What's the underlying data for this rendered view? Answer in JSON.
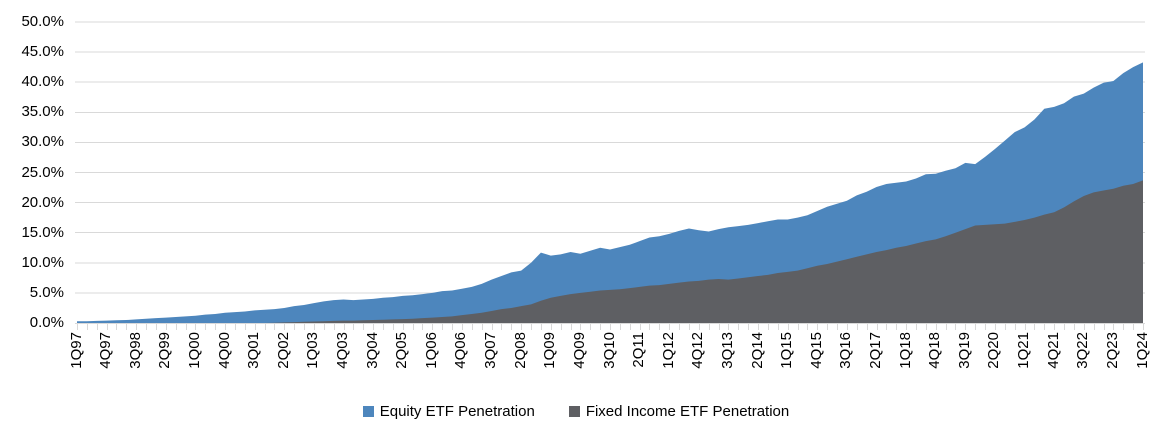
{
  "chart_data": {
    "type": "area",
    "variant": "overlapping-areas-no-stacking",
    "title": "",
    "xlabel": "",
    "ylabel": "",
    "ylim": [
      0,
      50
    ],
    "grid": "horizontal",
    "legend_position": "bottom-center",
    "gridline_color": "#d9d9d9",
    "axis_text_color": "#000000",
    "y_ticks": [
      "0.0%",
      "5.0%",
      "10.0%",
      "15.0%",
      "20.0%",
      "25.0%",
      "30.0%",
      "35.0%",
      "40.0%",
      "45.0%",
      "50.0%"
    ],
    "x_tick_every": 3,
    "x_tick_labels": [
      "1Q97",
      "4Q97",
      "3Q98",
      "2Q99",
      "1Q00",
      "4Q00",
      "3Q01",
      "2Q02",
      "1Q03",
      "4Q03",
      "3Q04",
      "2Q05",
      "1Q06",
      "4Q06",
      "3Q07",
      "2Q08",
      "1Q09",
      "4Q09",
      "3Q10",
      "2Q11",
      "1Q12",
      "4Q12",
      "3Q13",
      "2Q14",
      "1Q15",
      "4Q15",
      "3Q16",
      "2Q17",
      "1Q18",
      "4Q18",
      "3Q19",
      "2Q20",
      "1Q21",
      "4Q21",
      "3Q22",
      "2Q23",
      "1Q24"
    ],
    "x_quarters": [
      "1Q97",
      "2Q97",
      "3Q97",
      "4Q97",
      "1Q98",
      "2Q98",
      "3Q98",
      "4Q98",
      "1Q99",
      "2Q99",
      "3Q99",
      "4Q99",
      "1Q00",
      "2Q00",
      "3Q00",
      "4Q00",
      "1Q01",
      "2Q01",
      "3Q01",
      "4Q01",
      "1Q02",
      "2Q02",
      "3Q02",
      "4Q02",
      "1Q03",
      "2Q03",
      "3Q03",
      "4Q03",
      "1Q04",
      "2Q04",
      "3Q04",
      "4Q04",
      "1Q05",
      "2Q05",
      "3Q05",
      "4Q05",
      "1Q06",
      "2Q06",
      "3Q06",
      "4Q06",
      "1Q07",
      "2Q07",
      "3Q07",
      "4Q07",
      "1Q08",
      "2Q08",
      "3Q08",
      "4Q08",
      "1Q09",
      "2Q09",
      "3Q09",
      "4Q09",
      "1Q10",
      "2Q10",
      "3Q10",
      "4Q10",
      "1Q11",
      "2Q11",
      "3Q11",
      "4Q11",
      "1Q12",
      "2Q12",
      "3Q12",
      "4Q12",
      "1Q13",
      "2Q13",
      "3Q13",
      "4Q13",
      "1Q14",
      "2Q14",
      "3Q14",
      "4Q14",
      "1Q15",
      "2Q15",
      "3Q15",
      "4Q15",
      "1Q16",
      "2Q16",
      "3Q16",
      "4Q16",
      "1Q17",
      "2Q17",
      "3Q17",
      "4Q17",
      "1Q18",
      "2Q18",
      "3Q18",
      "4Q18",
      "1Q19",
      "2Q19",
      "3Q19",
      "4Q19",
      "1Q20",
      "2Q20",
      "3Q20",
      "4Q20",
      "1Q21",
      "2Q21",
      "3Q21",
      "4Q21",
      "1Q22",
      "2Q22",
      "3Q22",
      "4Q22",
      "1Q23",
      "2Q23",
      "3Q23",
      "4Q23",
      "1Q24"
    ],
    "series": [
      {
        "name": "Equity ETF Penetration",
        "color": "#4d86bd",
        "values": [
          0.3,
          0.3,
          0.35,
          0.4,
          0.45,
          0.5,
          0.6,
          0.7,
          0.8,
          0.9,
          1.0,
          1.1,
          1.2,
          1.4,
          1.5,
          1.7,
          1.8,
          1.9,
          2.1,
          2.2,
          2.3,
          2.5,
          2.8,
          3.0,
          3.3,
          3.6,
          3.8,
          3.9,
          3.8,
          3.9,
          4.0,
          4.2,
          4.3,
          4.5,
          4.6,
          4.8,
          5.0,
          5.3,
          5.4,
          5.7,
          6.0,
          6.5,
          7.2,
          7.8,
          8.4,
          8.7,
          10.0,
          11.7,
          11.2,
          11.4,
          11.8,
          11.5,
          12.0,
          12.5,
          12.2,
          12.6,
          13.0,
          13.6,
          14.2,
          14.4,
          14.8,
          15.3,
          15.7,
          15.4,
          15.2,
          15.6,
          15.9,
          16.1,
          16.3,
          16.6,
          16.9,
          17.2,
          17.2,
          17.5,
          17.9,
          18.6,
          19.3,
          19.8,
          20.3,
          21.2,
          21.8,
          22.6,
          23.1,
          23.3,
          23.5,
          24.0,
          24.7,
          24.8,
          25.3,
          25.7,
          26.6,
          26.4,
          27.6,
          28.9,
          30.3,
          31.7,
          32.5,
          33.8,
          35.6,
          35.9,
          36.5,
          37.6,
          38.1,
          39.1,
          39.9,
          40.2,
          41.5,
          42.5,
          43.3
        ]
      },
      {
        "name": "Fixed Income ETF Penetration",
        "color": "#5e5f63",
        "values": [
          0,
          0,
          0,
          0,
          0,
          0,
          0,
          0,
          0,
          0,
          0,
          0,
          0,
          0,
          0,
          0,
          0,
          0,
          0,
          0,
          0.05,
          0.1,
          0.15,
          0.2,
          0.25,
          0.3,
          0.35,
          0.4,
          0.4,
          0.45,
          0.5,
          0.55,
          0.6,
          0.65,
          0.7,
          0.8,
          0.9,
          1.0,
          1.1,
          1.3,
          1.5,
          1.7,
          2.0,
          2.3,
          2.5,
          2.8,
          3.1,
          3.7,
          4.2,
          4.5,
          4.8,
          5.0,
          5.2,
          5.4,
          5.5,
          5.6,
          5.8,
          6.0,
          6.2,
          6.3,
          6.5,
          6.7,
          6.9,
          7.0,
          7.2,
          7.3,
          7.2,
          7.4,
          7.6,
          7.8,
          8.0,
          8.3,
          8.5,
          8.7,
          9.1,
          9.5,
          9.8,
          10.2,
          10.6,
          11.0,
          11.4,
          11.8,
          12.1,
          12.5,
          12.8,
          13.2,
          13.6,
          13.9,
          14.4,
          15.0,
          15.6,
          16.2,
          16.3,
          16.4,
          16.5,
          16.8,
          17.1,
          17.5,
          18.0,
          18.4,
          19.2,
          20.2,
          21.1,
          21.7,
          22.0,
          22.3,
          22.8,
          23.1,
          23.7
        ]
      }
    ]
  }
}
